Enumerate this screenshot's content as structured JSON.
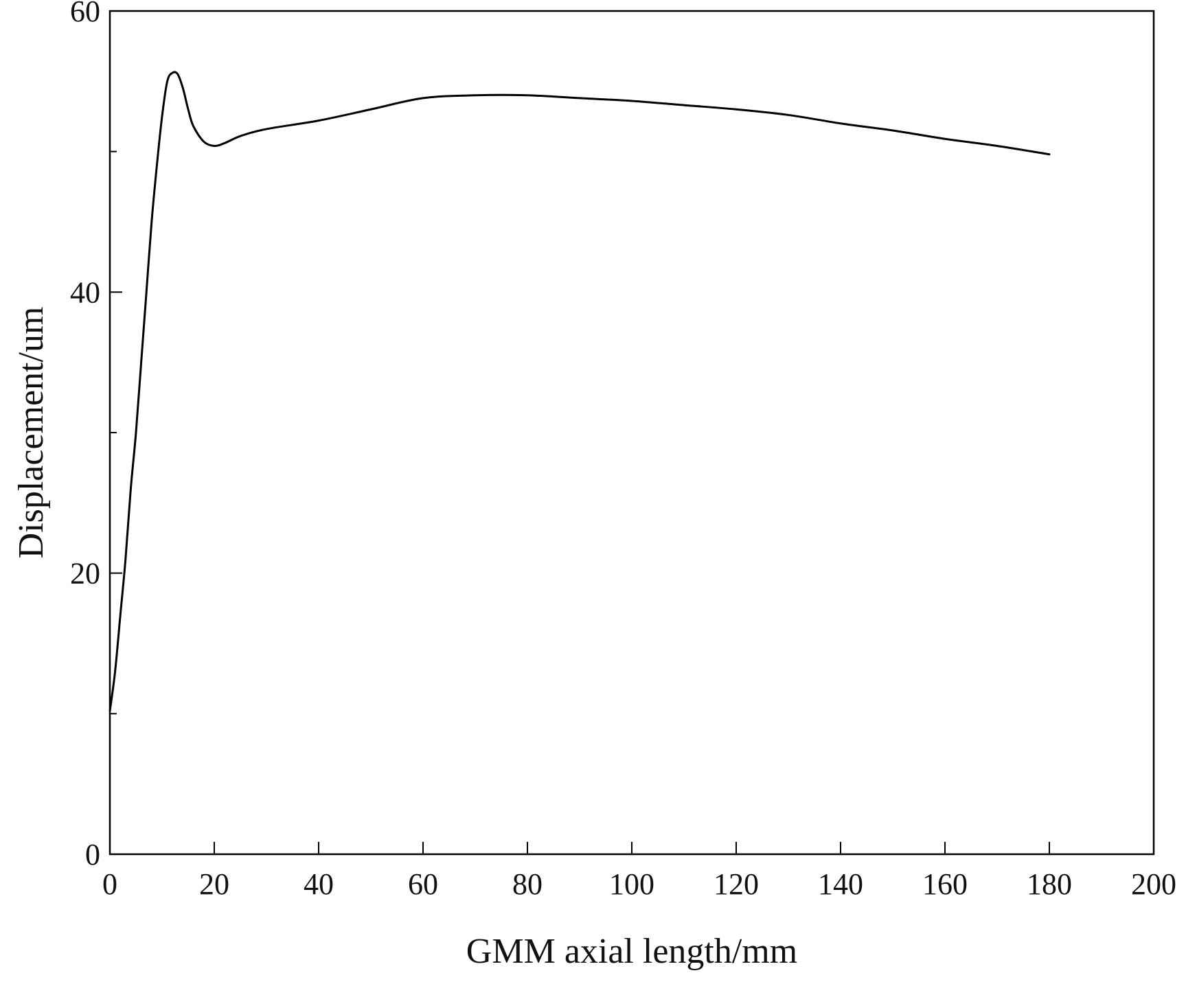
{
  "chart_data": {
    "type": "line",
    "xlabel": "GMM axial length/mm",
    "ylabel": "Displacement/um",
    "xlim": [
      0,
      200
    ],
    "ylim": [
      0,
      60
    ],
    "x_ticks": [
      0,
      20,
      40,
      60,
      80,
      100,
      120,
      140,
      160,
      180,
      200
    ],
    "x_tick_labels": [
      "0",
      "20",
      "40",
      "60",
      "80",
      "100",
      "120",
      "140",
      "160",
      "180",
      "200"
    ],
    "y_ticks": [
      0,
      20,
      40,
      60
    ],
    "y_tick_labels": [
      "0",
      "20",
      "40",
      "60"
    ],
    "y_minor_ticks": [
      10,
      30,
      50
    ],
    "grid": false,
    "legend": "none",
    "line_color": "#000000",
    "series": [
      {
        "x": [
          0,
          1,
          2,
          3,
          4,
          5,
          6,
          7,
          8,
          9,
          10,
          11,
          12,
          13,
          14,
          15,
          16,
          18,
          20,
          22,
          25,
          30,
          40,
          50,
          60,
          70,
          80,
          90,
          100,
          110,
          120,
          130,
          140,
          150,
          160,
          170,
          180
        ],
        "y": [
          10.2,
          13,
          17,
          21,
          26,
          30,
          35,
          40,
          45,
          49,
          52.5,
          55,
          55.6,
          55.5,
          54.5,
          53,
          51.8,
          50.7,
          50.4,
          50.6,
          51.1,
          51.6,
          52.2,
          53.0,
          53.8,
          54.0,
          54.0,
          53.8,
          53.6,
          53.3,
          53.0,
          52.6,
          52.0,
          51.5,
          50.9,
          50.4,
          49.8
        ]
      }
    ]
  }
}
